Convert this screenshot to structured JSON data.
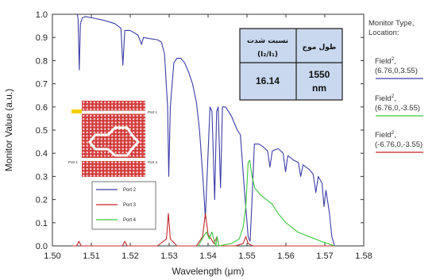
{
  "chart_data": {
    "type": "line",
    "xlabel": "Wavelength (μm)",
    "ylabel": "Monitor Value (a.u.)",
    "xlim": [
      1.5,
      1.58
    ],
    "ylim": [
      0.0,
      1.0
    ],
    "x_ticks": [
      "1.50",
      "1.51",
      "1.52",
      "1.53",
      "1.54",
      "1.55",
      "1.56",
      "1.57",
      "1.58"
    ],
    "y_ticks": [
      "0.0",
      "0.1",
      "0.2",
      "0.3",
      "0.4",
      "0.5",
      "0.6",
      "0.7",
      "0.8",
      "0.9",
      "1.0"
    ],
    "grid": false,
    "series": [
      {
        "name": "Port 2",
        "color": "#3c3ca8",
        "points": [
          [
            1.5064,
            1.0
          ],
          [
            1.5066,
            0.98
          ],
          [
            1.5069,
            0.76
          ],
          [
            1.5072,
            0.96
          ],
          [
            1.5077,
            0.985
          ],
          [
            1.5085,
            0.99
          ],
          [
            1.51,
            0.985
          ],
          [
            1.513,
            0.975
          ],
          [
            1.516,
            0.96
          ],
          [
            1.5176,
            0.94
          ],
          [
            1.5181,
            0.78
          ],
          [
            1.5186,
            0.93
          ],
          [
            1.52,
            0.93
          ],
          [
            1.522,
            0.91
          ],
          [
            1.5229,
            0.87
          ],
          [
            1.5234,
            0.9
          ],
          [
            1.525,
            0.895
          ],
          [
            1.527,
            0.89
          ],
          [
            1.528,
            0.88
          ],
          [
            1.5288,
            0.83
          ],
          [
            1.5296,
            0.6
          ],
          [
            1.5299,
            0.3
          ],
          [
            1.5303,
            0.6
          ],
          [
            1.5312,
            0.79
          ],
          [
            1.532,
            0.81
          ],
          [
            1.533,
            0.81
          ],
          [
            1.534,
            0.79
          ],
          [
            1.535,
            0.75
          ],
          [
            1.536,
            0.7
          ],
          [
            1.537,
            0.62
          ],
          [
            1.5378,
            0.5
          ],
          [
            1.5388,
            0.26
          ],
          [
            1.5393,
            0.12
          ],
          [
            1.54,
            0.4
          ],
          [
            1.5405,
            0.6
          ],
          [
            1.541,
            0.58
          ],
          [
            1.5417,
            0.2
          ],
          [
            1.5422,
            0.58
          ],
          [
            1.5426,
            0.6
          ],
          [
            1.5432,
            0.25
          ],
          [
            1.5437,
            0.6
          ],
          [
            1.5445,
            0.6
          ],
          [
            1.546,
            0.56
          ],
          [
            1.5475,
            0.5
          ],
          [
            1.5483,
            0.48
          ],
          [
            1.5493,
            0.25
          ],
          [
            1.5503,
            0.04
          ],
          [
            1.5508,
            0.02
          ],
          [
            1.5513,
            0.2
          ],
          [
            1.5519,
            0.44
          ],
          [
            1.553,
            0.44
          ],
          [
            1.554,
            0.43
          ],
          [
            1.5553,
            0.41
          ],
          [
            1.5559,
            0.34
          ],
          [
            1.5565,
            0.41
          ],
          [
            1.558,
            0.42
          ],
          [
            1.5593,
            0.4
          ],
          [
            1.5599,
            0.32
          ],
          [
            1.5605,
            0.39
          ],
          [
            1.562,
            0.37
          ],
          [
            1.5632,
            0.36
          ],
          [
            1.5638,
            0.3
          ],
          [
            1.5644,
            0.35
          ],
          [
            1.566,
            0.33
          ],
          [
            1.567,
            0.31
          ],
          [
            1.5677,
            0.23
          ],
          [
            1.5683,
            0.3
          ],
          [
            1.5693,
            0.27
          ],
          [
            1.5698,
            0.17
          ],
          [
            1.5703,
            0.24
          ],
          [
            1.5712,
            0.14
          ],
          [
            1.5718,
            0.04
          ],
          [
            1.5725,
            0.0
          ]
        ]
      },
      {
        "name": "Port 3",
        "color": "#c0282a",
        "points": [
          [
            1.505,
            0.0
          ],
          [
            1.5062,
            0.0
          ],
          [
            1.5068,
            0.02
          ],
          [
            1.5074,
            0.0
          ],
          [
            1.518,
            0.0
          ],
          [
            1.5186,
            0.02
          ],
          [
            1.5192,
            0.0
          ],
          [
            1.527,
            0.0
          ],
          [
            1.5293,
            0.03
          ],
          [
            1.5298,
            0.14
          ],
          [
            1.5303,
            0.03
          ],
          [
            1.532,
            0.0
          ],
          [
            1.537,
            0.0
          ],
          [
            1.5386,
            0.04
          ],
          [
            1.5393,
            0.14
          ],
          [
            1.54,
            0.05
          ],
          [
            1.5408,
            0.03
          ],
          [
            1.5415,
            0.01
          ],
          [
            1.5423,
            0.04
          ],
          [
            1.5428,
            0.0
          ],
          [
            1.547,
            0.0
          ],
          [
            1.549,
            0.01
          ],
          [
            1.5497,
            0.04
          ],
          [
            1.5503,
            0.01
          ],
          [
            1.5515,
            0.0
          ],
          [
            1.5725,
            0.0
          ]
        ]
      },
      {
        "name": "Port 4",
        "color": "#3cc83c",
        "points": [
          [
            1.5375,
            0.0
          ],
          [
            1.5388,
            0.04
          ],
          [
            1.5396,
            0.06
          ],
          [
            1.5403,
            0.03
          ],
          [
            1.541,
            0.06
          ],
          [
            1.5416,
            0.02
          ],
          [
            1.542,
            0.0
          ],
          [
            1.5423,
            0.04
          ],
          [
            1.5428,
            0.0
          ],
          [
            1.546,
            0.01
          ],
          [
            1.548,
            0.03
          ],
          [
            1.549,
            0.08
          ],
          [
            1.5497,
            0.17
          ],
          [
            1.5503,
            0.36
          ],
          [
            1.5507,
            0.37
          ],
          [
            1.5513,
            0.3
          ],
          [
            1.552,
            0.25
          ],
          [
            1.5535,
            0.22
          ],
          [
            1.555,
            0.2
          ],
          [
            1.5565,
            0.18
          ],
          [
            1.558,
            0.14
          ],
          [
            1.56,
            0.1
          ],
          [
            1.563,
            0.06
          ],
          [
            1.566,
            0.04
          ],
          [
            1.569,
            0.02
          ],
          [
            1.5725,
            0.0
          ]
        ]
      }
    ],
    "legend": {
      "placement": "bottom-left",
      "entries": [
        {
          "label": "Port 2",
          "color": "#3c3ca8"
        },
        {
          "label": "Port 3",
          "color": "#c0282a"
        },
        {
          "label": "Port 4",
          "color": "#3cc83c"
        }
      ]
    }
  },
  "table": {
    "headers": [
      "طول موج",
      "نسبت شدت",
      "(I₂/I₁)"
    ],
    "wavelength_value": [
      "1550",
      "nm"
    ],
    "ratio_value": "16.14",
    "fill": "#c9d8ee"
  },
  "monitor_legend": {
    "heading": [
      "Monitor Type,",
      "Location:"
    ],
    "entries": [
      {
        "type": "Field",
        "sup": "2",
        "loc": "(6.76,0,3.55)",
        "color": "#3c3ca8"
      },
      {
        "type": "Field",
        "sup": "2",
        "loc": "(6.76,0,-3.55)",
        "color": "#3cc83c"
      },
      {
        "type": "Field",
        "sup": "2",
        "loc": "(-6.76,0,-3.55)",
        "color": "#c0282a"
      }
    ]
  },
  "inset": {
    "port_labels": [
      "Port 1",
      "Port 1",
      "Port 1",
      "Port 4"
    ],
    "crystal_color": "#d43c3c"
  }
}
